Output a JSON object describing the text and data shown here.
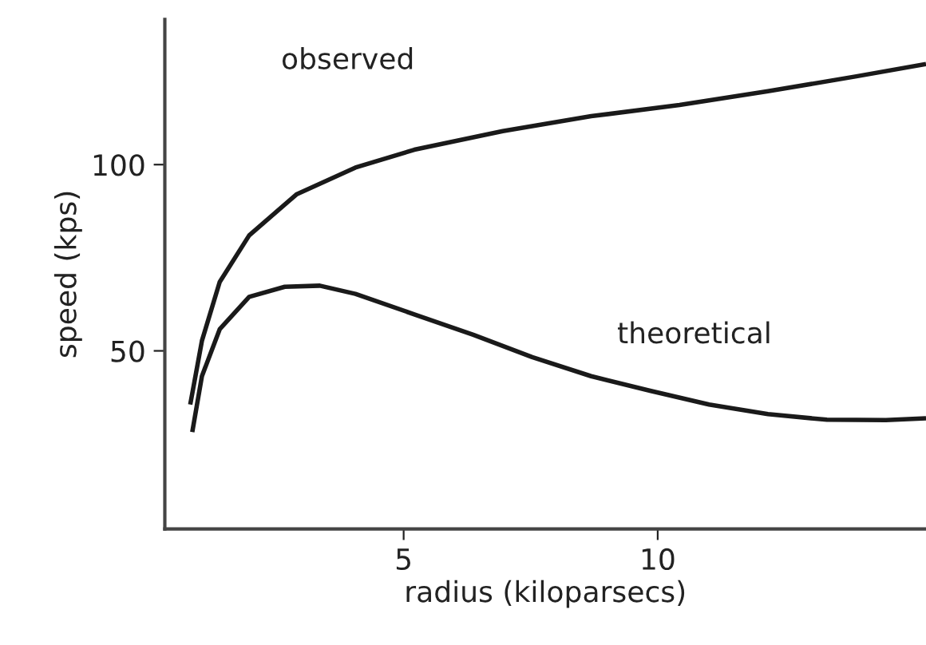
{
  "chart_data": {
    "type": "line",
    "xlabel": "radius (kiloparsecs)",
    "ylabel": "speed (kps)",
    "xlim": [
      0.3,
      15.28
    ],
    "ylim": [
      2.2,
      139
    ],
    "xticks": [
      5,
      10
    ],
    "yticks": [
      50,
      100
    ],
    "grid": false,
    "legend": false,
    "marker": "none",
    "line_style": "solid",
    "series": [
      {
        "name": "observed",
        "color": "#1a1a1a",
        "x": [
          0.8,
          1.03,
          1.38,
          1.96,
          2.89,
          4.05,
          5.21,
          6.95,
          8.69,
          10.43,
          12.17,
          13.91,
          15.28
        ],
        "values": [
          35.6,
          52.7,
          68.5,
          81,
          92,
          99.2,
          104,
          109,
          113,
          116,
          119.7,
          123.7,
          127
        ]
      },
      {
        "name": "theoretical",
        "color": "#1a1a1a",
        "x": [
          0.84,
          1.03,
          1.38,
          1.96,
          2.66,
          3.35,
          4.05,
          5.21,
          6.37,
          7.53,
          8.69,
          9.85,
          11.01,
          12.17,
          13.33,
          14.49,
          15.28
        ],
        "values": [
          28.2,
          43.2,
          55.8,
          64.5,
          67.2,
          67.5,
          65.3,
          59.8,
          54.3,
          48.3,
          43.2,
          39.3,
          35.6,
          33,
          31.5,
          31.4,
          31.9
        ]
      }
    ]
  }
}
